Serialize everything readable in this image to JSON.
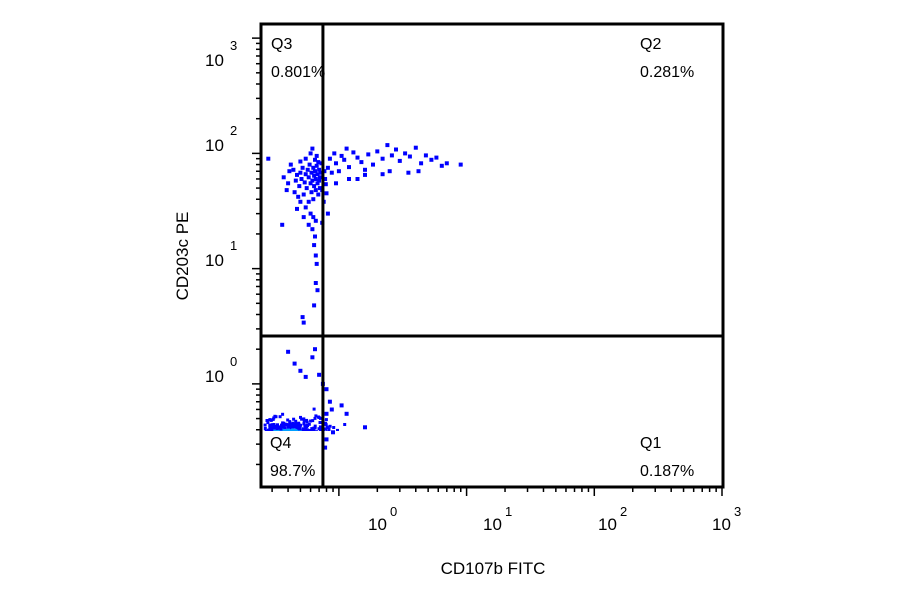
{
  "chart_data": {
    "type": "scatter",
    "plot_kind": "flow cytometry density dot plot with quadrant gates",
    "xlabel": "CD107b FITC",
    "ylabel": "CD203c PE",
    "x_scale": "log",
    "y_scale": "log",
    "xlim": [
      0.25,
      1000
    ],
    "ylim": [
      0.13,
      1300
    ],
    "x_ticks": [
      {
        "base": "10",
        "exp": "0",
        "value": 1
      },
      {
        "base": "10",
        "exp": "1",
        "value": 10
      },
      {
        "base": "10",
        "exp": "2",
        "value": 100
      },
      {
        "base": "10",
        "exp": "3",
        "value": 1000
      }
    ],
    "y_ticks": [
      {
        "base": "10",
        "exp": "0",
        "value": 1
      },
      {
        "base": "10",
        "exp": "1",
        "value": 10
      },
      {
        "base": "10",
        "exp": "2",
        "value": 100
      },
      {
        "base": "10",
        "exp": "3",
        "value": 1000
      }
    ],
    "gate": {
      "x": 0.75,
      "y": 2.6
    },
    "quadrants": [
      {
        "name": "Q3",
        "percent": "0.801%",
        "position": "top-left"
      },
      {
        "name": "Q2",
        "percent": "0.281%",
        "position": "top-right"
      },
      {
        "name": "Q4",
        "percent": "98.7%",
        "position": "bottom-left"
      },
      {
        "name": "Q1",
        "percent": "0.187%",
        "position": "bottom-right"
      }
    ],
    "colors": {
      "low": "#0000ff",
      "mid1": "#00a0ff",
      "mid2": "#00e040",
      "mid3": "#f0f000",
      "high": "#ff0000"
    },
    "populations": [
      {
        "name": "Q4 main population (dense core)",
        "center_x": 0.38,
        "center_y": 0.28,
        "density": "high"
      },
      {
        "name": "Q3 cluster",
        "center_x": 0.6,
        "center_y": 60,
        "density": "low"
      },
      {
        "name": "Q2 tail",
        "center_x": 3,
        "center_y": 80,
        "density": "low"
      }
    ],
    "points": [
      [
        0.28,
        90
      ],
      [
        0.37,
        62
      ],
      [
        0.39,
        48
      ],
      [
        0.4,
        55
      ],
      [
        0.41,
        70
      ],
      [
        0.42,
        80
      ],
      [
        0.44,
        72
      ],
      [
        0.45,
        46
      ],
      [
        0.46,
        58
      ],
      [
        0.47,
        65
      ],
      [
        0.48,
        42
      ],
      [
        0.49,
        52
      ],
      [
        0.5,
        85
      ],
      [
        0.5,
        68
      ],
      [
        0.51,
        60
      ],
      [
        0.52,
        75
      ],
      [
        0.53,
        44
      ],
      [
        0.54,
        56
      ],
      [
        0.55,
        90
      ],
      [
        0.55,
        66
      ],
      [
        0.56,
        50
      ],
      [
        0.57,
        72
      ],
      [
        0.58,
        62
      ],
      [
        0.58,
        38
      ],
      [
        0.59,
        80
      ],
      [
        0.6,
        55
      ],
      [
        0.6,
        100
      ],
      [
        0.61,
        46
      ],
      [
        0.61,
        68
      ],
      [
        0.62,
        58
      ],
      [
        0.62,
        110
      ],
      [
        0.63,
        75
      ],
      [
        0.63,
        40
      ],
      [
        0.64,
        64
      ],
      [
        0.64,
        52
      ],
      [
        0.65,
        88
      ],
      [
        0.65,
        70
      ],
      [
        0.66,
        48
      ],
      [
        0.66,
        60
      ],
      [
        0.67,
        95
      ],
      [
        0.67,
        78
      ],
      [
        0.68,
        55
      ],
      [
        0.68,
        66
      ],
      [
        0.69,
        84
      ],
      [
        0.69,
        44
      ],
      [
        0.7,
        72
      ],
      [
        0.7,
        58
      ],
      [
        0.71,
        62
      ],
      [
        0.71,
        50
      ],
      [
        0.72,
        68
      ],
      [
        0.55,
        34
      ],
      [
        0.6,
        30
      ],
      [
        0.63,
        28
      ],
      [
        0.58,
        24
      ],
      [
        0.66,
        26
      ],
      [
        0.62,
        22
      ],
      [
        0.65,
        19
      ],
      [
        0.64,
        16
      ],
      [
        0.66,
        13
      ],
      [
        0.67,
        11
      ],
      [
        0.66,
        7.5
      ],
      [
        0.68,
        6.5
      ],
      [
        0.64,
        4.8
      ],
      [
        0.52,
        3.8
      ],
      [
        0.53,
        3.4
      ],
      [
        0.36,
        24
      ],
      [
        0.5,
        38
      ],
      [
        0.47,
        33
      ],
      [
        0.53,
        28
      ],
      [
        0.78,
        60
      ],
      [
        0.82,
        75
      ],
      [
        0.85,
        90
      ],
      [
        0.88,
        68
      ],
      [
        0.92,
        100
      ],
      [
        0.95,
        82
      ],
      [
        1.0,
        70
      ],
      [
        1.05,
        95
      ],
      [
        1.1,
        88
      ],
      [
        1.15,
        110
      ],
      [
        1.2,
        76
      ],
      [
        1.3,
        102
      ],
      [
        1.4,
        92
      ],
      [
        1.5,
        84
      ],
      [
        1.6,
        72
      ],
      [
        1.7,
        98
      ],
      [
        1.85,
        80
      ],
      [
        2.0,
        104
      ],
      [
        2.2,
        90
      ],
      [
        2.4,
        118
      ],
      [
        2.6,
        96
      ],
      [
        2.8,
        108
      ],
      [
        3.0,
        86
      ],
      [
        3.3,
        100
      ],
      [
        3.6,
        94
      ],
      [
        4.0,
        112
      ],
      [
        4.4,
        82
      ],
      [
        4.8,
        96
      ],
      [
        5.3,
        88
      ],
      [
        5.8,
        92
      ],
      [
        6.4,
        78
      ],
      [
        7.0,
        82
      ],
      [
        9.0,
        80
      ],
      [
        0.8,
        45
      ],
      [
        0.82,
        30
      ],
      [
        0.95,
        55
      ],
      [
        1.2,
        60
      ],
      [
        1.6,
        65
      ],
      [
        2.5,
        70
      ],
      [
        3.5,
        68
      ],
      [
        0.74,
        48
      ],
      [
        0.76,
        38
      ],
      [
        0.73,
        82
      ],
      [
        0.77,
        70
      ],
      [
        0.79,
        54
      ],
      [
        0.74,
        25
      ],
      [
        1.4,
        60
      ],
      [
        2.2,
        66
      ],
      [
        4.2,
        70
      ],
      [
        0.4,
        1.9
      ],
      [
        0.45,
        1.5
      ],
      [
        0.5,
        1.3
      ],
      [
        0.55,
        1.15
      ],
      [
        0.62,
        1.7
      ],
      [
        0.65,
        2.0
      ],
      [
        0.7,
        1.2
      ],
      [
        0.75,
        1.0
      ],
      [
        0.8,
        0.9
      ],
      [
        0.85,
        0.7
      ],
      [
        0.8,
        0.55
      ],
      [
        0.78,
        0.45
      ],
      [
        0.88,
        0.6
      ],
      [
        1.05,
        0.65
      ],
      [
        1.15,
        0.55
      ],
      [
        1.6,
        0.42
      ],
      [
        0.9,
        0.38
      ],
      [
        0.8,
        0.33
      ],
      [
        0.78,
        0.28
      ]
    ]
  }
}
